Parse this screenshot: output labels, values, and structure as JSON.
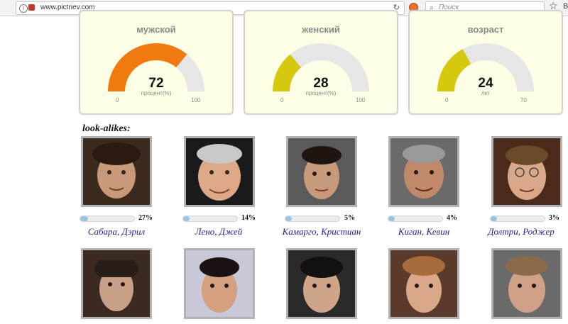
{
  "browser": {
    "url": "www.pictriev.com",
    "search_placeholder": "Поиск",
    "b_label": "B"
  },
  "gauges": [
    {
      "label": "мужской",
      "value": "72",
      "unit": "процент(%)",
      "min": "0",
      "max": "100",
      "fraction": 0.72,
      "color": "#f07a10"
    },
    {
      "label": "женский",
      "value": "28",
      "unit": "процент(%)",
      "min": "0",
      "max": "100",
      "fraction": 0.28,
      "color": "#d6c80e"
    },
    {
      "label": "возраст",
      "value": "24",
      "unit": "лет",
      "min": "0",
      "max": "70",
      "fraction": 0.343,
      "color": "#d6c80e"
    }
  ],
  "lookalikes_title": "look-alikes:",
  "lookalikes": [
    {
      "name": "Сабара, Дэрил",
      "percent": "27%",
      "fraction": 0.27
    },
    {
      "name": "Лено, Джей",
      "percent": "14%",
      "fraction": 0.14
    },
    {
      "name": "Камарго, Кристиан",
      "percent": "5%",
      "fraction": 0.05
    },
    {
      "name": "Киган, Кевин",
      "percent": "4%",
      "fraction": 0.04
    },
    {
      "name": "Долтри, Роджер",
      "percent": "3%",
      "fraction": 0.03
    }
  ],
  "colors": {
    "accent_orange": "#f07a10",
    "accent_yellow": "#d6c80e",
    "bar_fill": "#9cc3df",
    "name_link": "#2b1a8e",
    "card_bg": "#fdfde6"
  }
}
